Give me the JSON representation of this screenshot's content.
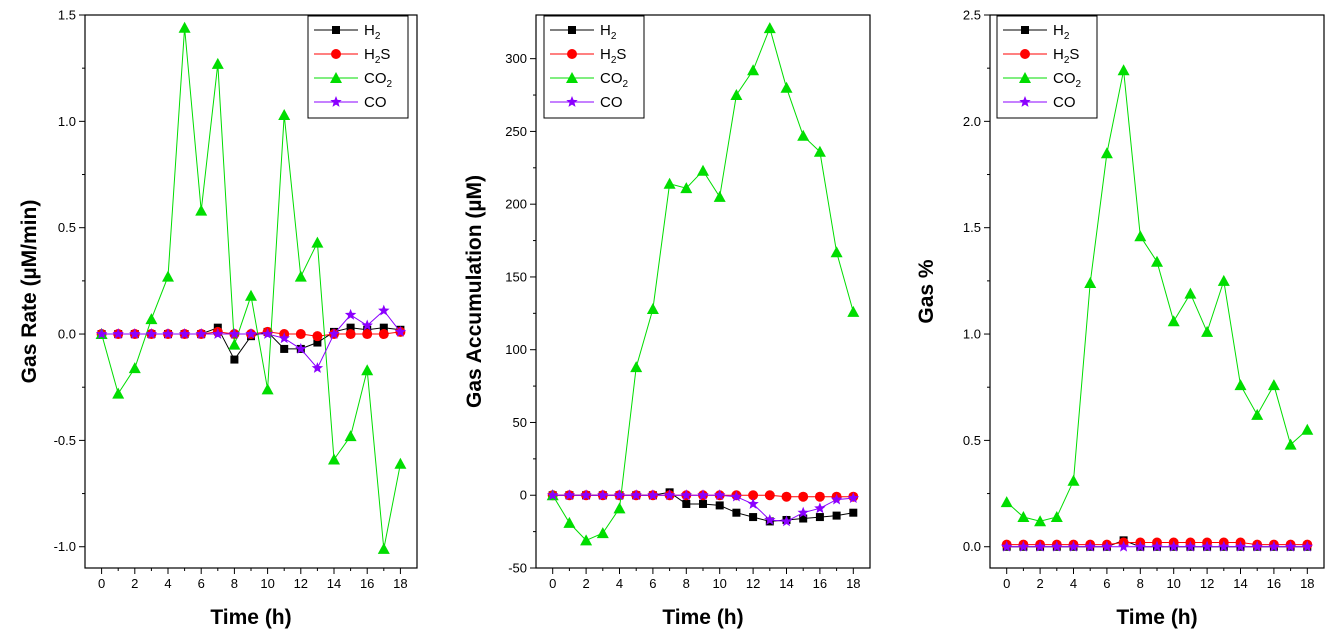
{
  "colors": {
    "H2": "#000000",
    "H2S": "#ff0000",
    "CO2": "#00dd00",
    "CO": "#8b00ff"
  },
  "chart_data": [
    {
      "type": "line",
      "title": "",
      "xlabel": "Time (h)",
      "ylabel": "Gas Rate (µM/min)",
      "xlim": [
        -1,
        19
      ],
      "ylim": [
        -1.1,
        1.5
      ],
      "xticks": [
        0,
        2,
        4,
        6,
        8,
        10,
        12,
        14,
        16,
        18
      ],
      "yticks": [
        -1.0,
        -0.5,
        0.0,
        0.5,
        1.0,
        1.5
      ],
      "ytick_labels": [
        "-1.0",
        "-0.5",
        "0.0",
        "0.5",
        "1.0",
        "1.5"
      ],
      "legend_position": "top-right",
      "x": [
        0,
        1,
        2,
        3,
        4,
        5,
        6,
        7,
        8,
        9,
        10,
        11,
        12,
        13,
        14,
        15,
        16,
        17,
        18
      ],
      "series": [
        {
          "name": "H",
          "sub": "2",
          "suffix": "",
          "key": "H2",
          "marker": "square",
          "values": [
            0,
            0,
            0,
            0,
            0,
            0,
            0,
            0.03,
            -0.12,
            -0.01,
            0.01,
            -0.07,
            -0.07,
            -0.04,
            0.01,
            0.03,
            0.02,
            0.03,
            0.02
          ]
        },
        {
          "name": "H",
          "sub": "2",
          "suffix": "S",
          "key": "H2S",
          "marker": "circle",
          "values": [
            0,
            0,
            0,
            0,
            0,
            0,
            0,
            0.01,
            0,
            0,
            0.01,
            0,
            0,
            -0.01,
            0,
            0,
            0,
            0,
            0.01
          ]
        },
        {
          "name": "CO",
          "sub": "2",
          "suffix": "",
          "key": "CO2",
          "marker": "triangle",
          "values": [
            0,
            -0.28,
            -0.16,
            0.07,
            0.27,
            1.44,
            0.58,
            1.27,
            -0.05,
            0.18,
            -0.26,
            1.03,
            0.27,
            0.43,
            -0.59,
            -0.48,
            -0.17,
            -1.01,
            -0.61
          ]
        },
        {
          "name": "CO",
          "sub": "",
          "suffix": "",
          "key": "CO",
          "marker": "star",
          "values": [
            0,
            0,
            0,
            0,
            0,
            0,
            0,
            0,
            0,
            0,
            0,
            -0.02,
            -0.07,
            -0.16,
            0,
            0.09,
            0.04,
            0.11,
            0.01
          ]
        }
      ]
    },
    {
      "type": "line",
      "title": "",
      "xlabel": "Time (h)",
      "ylabel": "Gas Accumulation (µM)",
      "xlim": [
        -1,
        19
      ],
      "ylim": [
        -50,
        330
      ],
      "xticks": [
        0,
        2,
        4,
        6,
        8,
        10,
        12,
        14,
        16,
        18
      ],
      "yticks": [
        -50,
        0,
        50,
        100,
        150,
        200,
        250,
        300
      ],
      "ytick_labels": [
        "-50",
        "0",
        "50",
        "100",
        "150",
        "200",
        "250",
        "300"
      ],
      "legend_position": "top-left",
      "x": [
        0,
        1,
        2,
        3,
        4,
        5,
        6,
        7,
        8,
        9,
        10,
        11,
        12,
        13,
        14,
        15,
        16,
        17,
        18
      ],
      "series": [
        {
          "name": "H",
          "sub": "2",
          "suffix": "",
          "key": "H2",
          "marker": "square",
          "values": [
            0,
            0,
            0,
            0,
            0,
            0,
            0,
            2,
            -6,
            -6,
            -7,
            -12,
            -15,
            -18,
            -17,
            -16,
            -15,
            -14,
            -12
          ]
        },
        {
          "name": "H",
          "sub": "2",
          "suffix": "S",
          "key": "H2S",
          "marker": "circle",
          "values": [
            0,
            0,
            0,
            0,
            0,
            0,
            0,
            0,
            0,
            0,
            0,
            0,
            0,
            0,
            -1,
            -1,
            -1,
            -1,
            -1
          ]
        },
        {
          "name": "CO",
          "sub": "2",
          "suffix": "",
          "key": "CO2",
          "marker": "triangle",
          "values": [
            0,
            -19,
            -31,
            -26,
            -9,
            88,
            128,
            214,
            211,
            223,
            205,
            275,
            292,
            321,
            280,
            247,
            236,
            167,
            126
          ]
        },
        {
          "name": "CO",
          "sub": "",
          "suffix": "",
          "key": "CO",
          "marker": "star",
          "values": [
            0,
            0,
            0,
            0,
            0,
            0,
            0,
            0,
            0,
            0,
            0,
            -1,
            -6,
            -17,
            -18,
            -12,
            -9,
            -3,
            -2
          ]
        }
      ]
    },
    {
      "type": "line",
      "title": "",
      "xlabel": "Time (h)",
      "ylabel": "Gas %",
      "xlim": [
        -1,
        19
      ],
      "ylim": [
        -0.1,
        2.5
      ],
      "xticks": [
        0,
        2,
        4,
        6,
        8,
        10,
        12,
        14,
        16,
        18
      ],
      "yticks": [
        0.0,
        0.5,
        1.0,
        1.5,
        2.0,
        2.5
      ],
      "ytick_labels": [
        "0.0",
        "0.5",
        "1.0",
        "1.5",
        "2.0",
        "2.5"
      ],
      "legend_position": "top-left",
      "x": [
        0,
        1,
        2,
        3,
        4,
        5,
        6,
        7,
        8,
        9,
        10,
        11,
        12,
        13,
        14,
        15,
        16,
        17,
        18
      ],
      "series": [
        {
          "name": "H",
          "sub": "2",
          "suffix": "",
          "key": "H2",
          "marker": "square",
          "values": [
            0,
            0,
            0,
            0,
            0,
            0,
            0,
            0.03,
            0,
            0,
            0,
            0,
            0,
            0,
            0,
            0,
            0,
            0,
            0
          ]
        },
        {
          "name": "H",
          "sub": "2",
          "suffix": "S",
          "key": "H2S",
          "marker": "circle",
          "values": [
            0.01,
            0.01,
            0.01,
            0.01,
            0.01,
            0.01,
            0.01,
            0.02,
            0.02,
            0.02,
            0.02,
            0.02,
            0.02,
            0.02,
            0.02,
            0.01,
            0.01,
            0.01,
            0.01
          ]
        },
        {
          "name": "CO",
          "sub": "2",
          "suffix": "",
          "key": "CO2",
          "marker": "triangle",
          "values": [
            0.21,
            0.14,
            0.12,
            0.14,
            0.31,
            1.24,
            1.85,
            2.24,
            1.46,
            1.34,
            1.06,
            1.19,
            1.01,
            1.25,
            0.76,
            0.62,
            0.76,
            0.48,
            0.55
          ]
        },
        {
          "name": "CO",
          "sub": "",
          "suffix": "",
          "key": "CO",
          "marker": "star",
          "values": [
            0,
            0,
            0,
            0,
            0,
            0,
            0,
            0,
            0,
            0,
            0,
            0,
            0,
            0,
            0,
            0,
            0,
            0,
            0
          ]
        }
      ]
    }
  ]
}
